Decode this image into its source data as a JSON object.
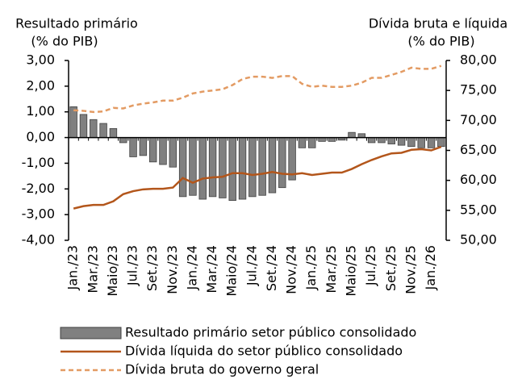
{
  "chart_data": {
    "type": "bar_line",
    "y_title": [
      "Resultado primário",
      "(% do PIB)"
    ],
    "y2_title": [
      "Dívida bruta e líquida",
      "(% do PIB)"
    ],
    "categories": [
      "Jan./23",
      null,
      "Mar./23",
      null,
      "Maio/23",
      null,
      "Jul./23",
      null,
      "Set./23",
      null,
      "Nov./23",
      null,
      "Jan./24",
      null,
      "Mar./24",
      null,
      "Maio/24",
      null,
      "Jul./24",
      null,
      "Set./24",
      null,
      "Nov./24",
      null,
      "Jan./25",
      null,
      "Mar./25",
      null,
      "Maio/25",
      null,
      "Jul./25",
      null,
      "Set./25",
      null,
      "Nov./25",
      null,
      "Jan./26",
      null
    ],
    "series": [
      {
        "name": "Resultado primário setor público consolidado",
        "type": "bar",
        "axis": "y",
        "color": "#808080",
        "values": [
          1.2,
          0.9,
          0.7,
          0.55,
          0.35,
          -0.2,
          -0.75,
          -0.7,
          -0.95,
          -1.05,
          -1.15,
          -2.3,
          -2.25,
          -2.4,
          -2.3,
          -2.35,
          -2.45,
          -2.4,
          -2.3,
          -2.25,
          -2.15,
          -1.95,
          -1.65,
          -0.4,
          -0.4,
          -0.15,
          -0.15,
          -0.1,
          0.2,
          0.15,
          -0.2,
          -0.2,
          -0.25,
          -0.3,
          -0.35,
          -0.4,
          -0.4,
          -0.35
        ]
      },
      {
        "name": "Dívida líquida do setor público consolidado",
        "type": "line",
        "axis": "y2",
        "color": "#b3561b",
        "dashed": false,
        "values": [
          55.3,
          55.7,
          55.9,
          55.9,
          56.5,
          57.7,
          58.2,
          58.5,
          58.6,
          58.6,
          58.8,
          60.4,
          59.6,
          60.3,
          60.5,
          60.6,
          61.2,
          61.2,
          60.9,
          61.1,
          61.4,
          61.1,
          61.0,
          61.2,
          60.9,
          61.1,
          61.3,
          61.3,
          61.9,
          62.7,
          63.4,
          64.0,
          64.5,
          64.6,
          65.1,
          65.2,
          65.0,
          65.6
        ]
      },
      {
        "name": "Dívida bruta do governo geral",
        "type": "line",
        "axis": "y2",
        "color": "#e39b63",
        "dashed": true,
        "values": [
          71.7,
          71.6,
          71.4,
          71.5,
          72.1,
          72.0,
          72.5,
          72.8,
          73.0,
          73.3,
          73.3,
          73.8,
          74.5,
          74.8,
          75.0,
          75.2,
          75.9,
          76.9,
          77.3,
          77.3,
          77.1,
          77.4,
          77.4,
          76.1,
          75.6,
          75.8,
          75.6,
          75.6,
          75.8,
          76.3,
          77.1,
          77.1,
          77.6,
          78.1,
          78.8,
          78.6,
          78.6,
          79.1
        ]
      }
    ],
    "ylim": [
      -4,
      3
    ],
    "yticks": [
      {
        "value": -4,
        "label": "-4,00"
      },
      {
        "value": -3,
        "label": "-3,00"
      },
      {
        "value": -2,
        "label": "-2,00"
      },
      {
        "value": -1,
        "label": "-1,00"
      },
      {
        "value": 0,
        "label": "0,00"
      },
      {
        "value": 1,
        "label": "1,00"
      },
      {
        "value": 2,
        "label": "2,00"
      },
      {
        "value": 3,
        "label": "3,00"
      }
    ],
    "y2lim": [
      50,
      80
    ],
    "y2ticks": [
      {
        "value": 50,
        "label": "50,00"
      },
      {
        "value": 55,
        "label": "55,00"
      },
      {
        "value": 60,
        "label": "60,00"
      },
      {
        "value": 65,
        "label": "65,00"
      },
      {
        "value": 70,
        "label": "70,00"
      },
      {
        "value": 75,
        "label": "75,00"
      },
      {
        "value": 80,
        "label": "80,00"
      }
    ]
  }
}
